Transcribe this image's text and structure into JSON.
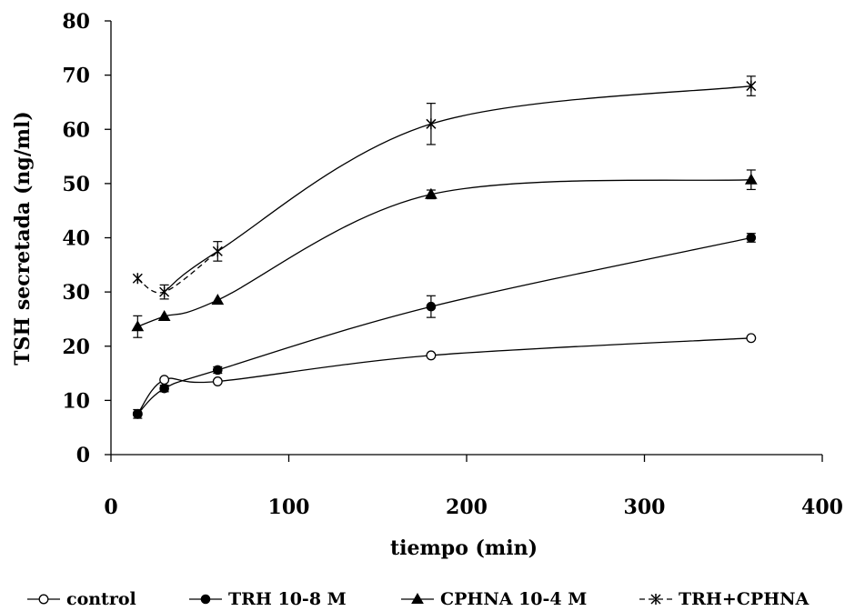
{
  "chart_data": {
    "type": "line",
    "xlabel": "tiempo (min)",
    "ylabel": "TSH secretada (ng/ml)",
    "xlim": [
      0,
      400
    ],
    "ylim": [
      0,
      80
    ],
    "xticks": [
      0,
      100,
      200,
      300,
      400
    ],
    "yticks": [
      0,
      10,
      20,
      30,
      40,
      50,
      60,
      70,
      80
    ],
    "grid": false,
    "legend_position": "bottom",
    "x": [
      15,
      30,
      60,
      180,
      360
    ],
    "series": [
      {
        "name": "control",
        "marker": "open-circle",
        "line": "solid",
        "values": [
          7.5,
          13.8,
          13.5,
          18.3,
          21.5
        ],
        "errors": [
          0.0,
          0.0,
          0.0,
          0.0,
          0.0
        ]
      },
      {
        "name": "TRH 10-8 M",
        "marker": "filled-circle",
        "line": "solid",
        "values": [
          7.5,
          12.2,
          15.6,
          27.3,
          40.0
        ],
        "errors": [
          0.8,
          0.6,
          0.6,
          2.0,
          0.8
        ]
      },
      {
        "name": "CPHNA 10-4 M",
        "marker": "filled-triangle",
        "line": "solid",
        "values": [
          23.6,
          25.5,
          28.5,
          48.0,
          50.7
        ],
        "errors": [
          2.0,
          0.0,
          0.0,
          0.8,
          1.8
        ]
      },
      {
        "name": "TRH+CPHNA",
        "marker": "star",
        "line": "dashed-then-solid",
        "values": [
          32.5,
          30.0,
          37.5,
          61.0,
          68.0
        ],
        "errors": [
          0.0,
          1.3,
          1.8,
          3.8,
          1.8
        ]
      }
    ]
  }
}
